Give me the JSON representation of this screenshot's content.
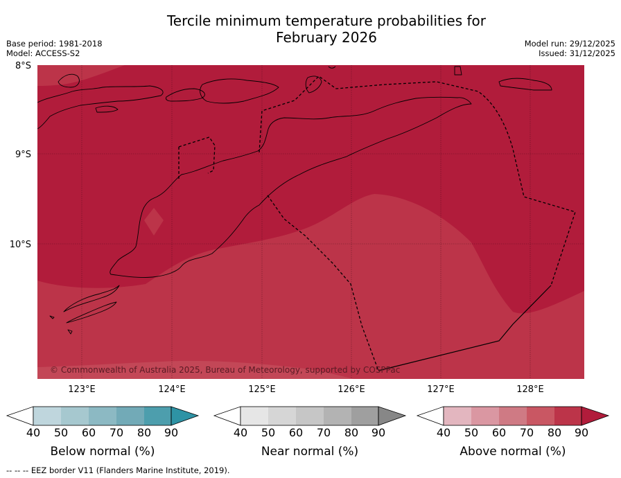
{
  "header": {
    "title_line1": "Tercile minimum temperature probabilities for",
    "title_line2": "February 2026",
    "base_period": "Base period: 1981-2018",
    "model": "Model: ACCESS-S2",
    "model_run": "Model run: 29/12/2025",
    "issued": "Issued: 31/12/2025"
  },
  "map": {
    "lat_labels": [
      "8°S",
      "9°S",
      "10°S"
    ],
    "lon_labels": [
      "123°E",
      "124°E",
      "125°E",
      "126°E",
      "127°E",
      "128°E"
    ],
    "copyright": "© Commonwealth of Australia 2025, Bureau of Meteorology, supported by COSPPac",
    "colors": {
      "above_90": "#b11c3b",
      "above_80": "#bc3449",
      "above_70": "#c95763"
    }
  },
  "colorbars": [
    {
      "label": "Below normal (%)",
      "ticks": [
        "40",
        "50",
        "60",
        "70",
        "80",
        "90"
      ],
      "colors": [
        "#bfd6dd",
        "#a6c8cf",
        "#8cb9c3",
        "#72aab7",
        "#4d9ead",
        "#2e93a5"
      ]
    },
    {
      "label": "Near normal (%)",
      "ticks": [
        "40",
        "50",
        "60",
        "70",
        "80",
        "90"
      ],
      "colors": [
        "#e6e6e6",
        "#d6d6d6",
        "#c6c6c6",
        "#b3b3b3",
        "#9f9f9f",
        "#878787"
      ]
    },
    {
      "label": "Above normal (%)",
      "ticks": [
        "40",
        "50",
        "60",
        "70",
        "80",
        "90"
      ],
      "colors": [
        "#e3b6bf",
        "#da97a2",
        "#cf7a84",
        "#c95763",
        "#bc3449",
        "#b11c3b"
      ]
    }
  ],
  "footer": {
    "legend_symbol": "-- -- --",
    "legend_text": "EEZ border V11 (Flanders Marine Institute, 2019)."
  }
}
